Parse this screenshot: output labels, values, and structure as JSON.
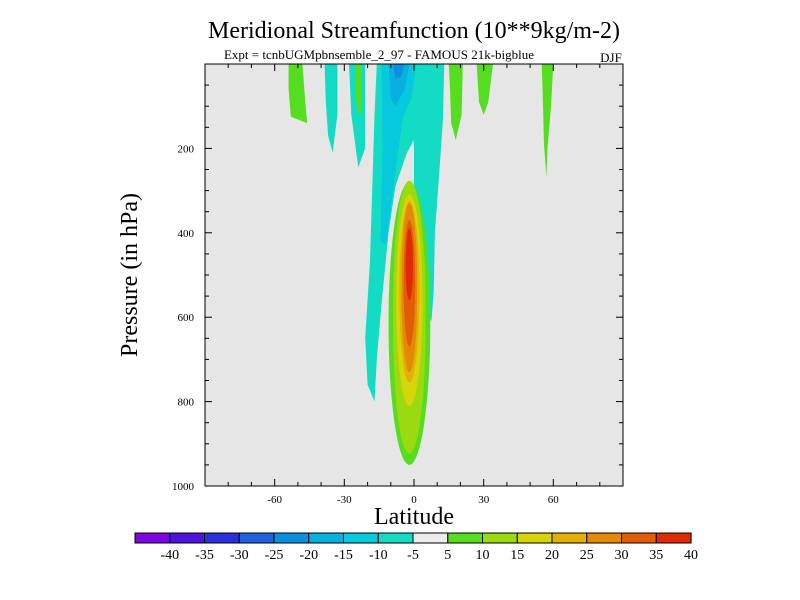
{
  "chart_data": {
    "type": "heatmap",
    "title": "Meridional Streamfunction (10**9kg/m-2)",
    "subtitle": "Expt = tcnbUGMpbnsemble_2_97 - FAMOUS 21k-bigblue",
    "season": "DJF",
    "xlabel": "Latitude",
    "ylabel": "Pressure (in hPa)",
    "xlim": [
      -90,
      90
    ],
    "ylim": [
      1000,
      0
    ],
    "x_ticks": [
      -60,
      -30,
      0,
      30,
      60
    ],
    "x_tick_labels": [
      "-60",
      "-30",
      "0",
      "30",
      "60"
    ],
    "y_ticks": [
      200,
      400,
      600,
      800,
      1000
    ],
    "y_tick_labels": [
      "200",
      "400",
      "600",
      "800",
      "1000"
    ],
    "colorbar": {
      "labels": [
        "-40",
        "-35",
        "-30",
        "-25",
        "-20",
        "-15",
        "-10",
        "-5",
        "5",
        "10",
        "15",
        "20",
        "25",
        "30",
        "35",
        "40"
      ],
      "colors": [
        "#7e05e0",
        "#4d12dd",
        "#2a2fde",
        "#1f62dd",
        "#0d8fe0",
        "#07b0df",
        "#06c9dd",
        "#14dcc4",
        "#ececec",
        "#55dd20",
        "#9bd911",
        "#d5d50a",
        "#e4b003",
        "#e48905",
        "#e25b06",
        "#df2a05"
      ]
    },
    "features": [
      {
        "name": "southern-hemisphere-cell",
        "sign": "negative",
        "levels": [
          -5,
          -10,
          -15,
          -20,
          -25
        ],
        "lat_range": [
          -20,
          0
        ],
        "peak_lat": -5,
        "top_hpa": 0,
        "bottom_hpa": 800
      },
      {
        "name": "hadley-cell-main",
        "sign": "positive",
        "levels": [
          5,
          10,
          15,
          20,
          25,
          30,
          35
        ],
        "center_lat": -2,
        "top_hpa": 280,
        "bottom_hpa": 940,
        "peak_value": 35
      },
      {
        "name": "northern-tropical-negative",
        "sign": "negative",
        "levels": [
          -5
        ],
        "lat_range": [
          0,
          13
        ],
        "top_hpa": 0,
        "bottom_hpa": 610
      },
      {
        "name": "upper-level-filaments",
        "sign": "mixed",
        "lat_range": [
          -53,
          60
        ],
        "top_hpa": 0,
        "bottom_hpa": 260
      }
    ]
  }
}
